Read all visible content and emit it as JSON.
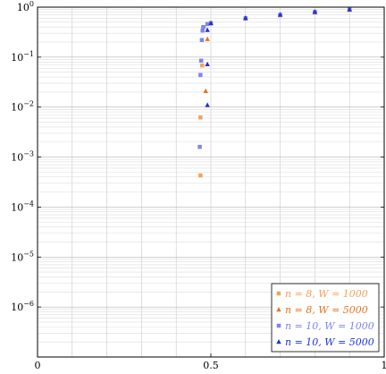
{
  "chart_data": {
    "type": "scatter",
    "title": "",
    "xlabel": "",
    "ylabel": "",
    "xlim": [
      0,
      1
    ],
    "ylim": [
      1e-07,
      1
    ],
    "yscale": "log",
    "grid": true,
    "legend_placement": "bottom-right",
    "x_ticks": [
      {
        "value": 0,
        "label": "0"
      },
      {
        "value": 0.5,
        "label": "0.5"
      },
      {
        "value": 1,
        "label": "1"
      }
    ],
    "y_ticks": [
      {
        "value": 1,
        "label": "10",
        "exp": "0"
      },
      {
        "value": 0.1,
        "label": "10",
        "exp": "−1"
      },
      {
        "value": 0.01,
        "label": "10",
        "exp": "−2"
      },
      {
        "value": 0.001,
        "label": "10",
        "exp": "−3"
      },
      {
        "value": 0.0001,
        "label": "10",
        "exp": "−4"
      },
      {
        "value": 1e-05,
        "label": "10",
        "exp": "−5"
      },
      {
        "value": 1e-06,
        "label": "10",
        "exp": "−6"
      }
    ],
    "series": [
      {
        "name": "n = 8, W = 1000",
        "color": "#f5a15c",
        "marker": "square",
        "points": [
          {
            "x": 0.47,
            "y": 0.00043
          },
          {
            "x": 0.47,
            "y": 0.0062
          },
          {
            "x": 0.475,
            "y": 0.068
          },
          {
            "x": 0.48,
            "y": 0.4
          },
          {
            "x": 0.5,
            "y": 0.47
          },
          {
            "x": 0.6,
            "y": 0.59
          },
          {
            "x": 0.7,
            "y": 0.69
          },
          {
            "x": 0.8,
            "y": 0.78
          },
          {
            "x": 0.9,
            "y": 0.88
          }
        ]
      },
      {
        "name": "n = 8, W = 5000",
        "color": "#e8731e",
        "marker": "triangle",
        "points": [
          {
            "x": 0.485,
            "y": 0.021
          },
          {
            "x": 0.49,
            "y": 0.23
          },
          {
            "x": 0.5,
            "y": 0.47
          },
          {
            "x": 0.6,
            "y": 0.59
          },
          {
            "x": 0.7,
            "y": 0.69
          },
          {
            "x": 0.8,
            "y": 0.79
          },
          {
            "x": 0.9,
            "y": 0.89
          }
        ]
      },
      {
        "name": "n = 10, W = 1000",
        "color": "#7d86ee",
        "marker": "square",
        "points": [
          {
            "x": 0.468,
            "y": 0.0016
          },
          {
            "x": 0.47,
            "y": 0.044
          },
          {
            "x": 0.472,
            "y": 0.085
          },
          {
            "x": 0.474,
            "y": 0.22
          },
          {
            "x": 0.476,
            "y": 0.34
          },
          {
            "x": 0.478,
            "y": 0.4
          },
          {
            "x": 0.49,
            "y": 0.46
          },
          {
            "x": 0.5,
            "y": 0.48
          },
          {
            "x": 0.6,
            "y": 0.6
          },
          {
            "x": 0.7,
            "y": 0.7
          },
          {
            "x": 0.8,
            "y": 0.8
          },
          {
            "x": 0.9,
            "y": 0.89
          }
        ]
      },
      {
        "name": "n = 10, W = 5000",
        "color": "#1f35d6",
        "marker": "triangle",
        "points": [
          {
            "x": 0.49,
            "y": 0.011
          },
          {
            "x": 0.49,
            "y": 0.072
          },
          {
            "x": 0.49,
            "y": 0.35
          },
          {
            "x": 0.5,
            "y": 0.48
          },
          {
            "x": 0.6,
            "y": 0.61
          },
          {
            "x": 0.7,
            "y": 0.71
          },
          {
            "x": 0.8,
            "y": 0.81
          },
          {
            "x": 0.9,
            "y": 0.9
          }
        ]
      }
    ]
  }
}
